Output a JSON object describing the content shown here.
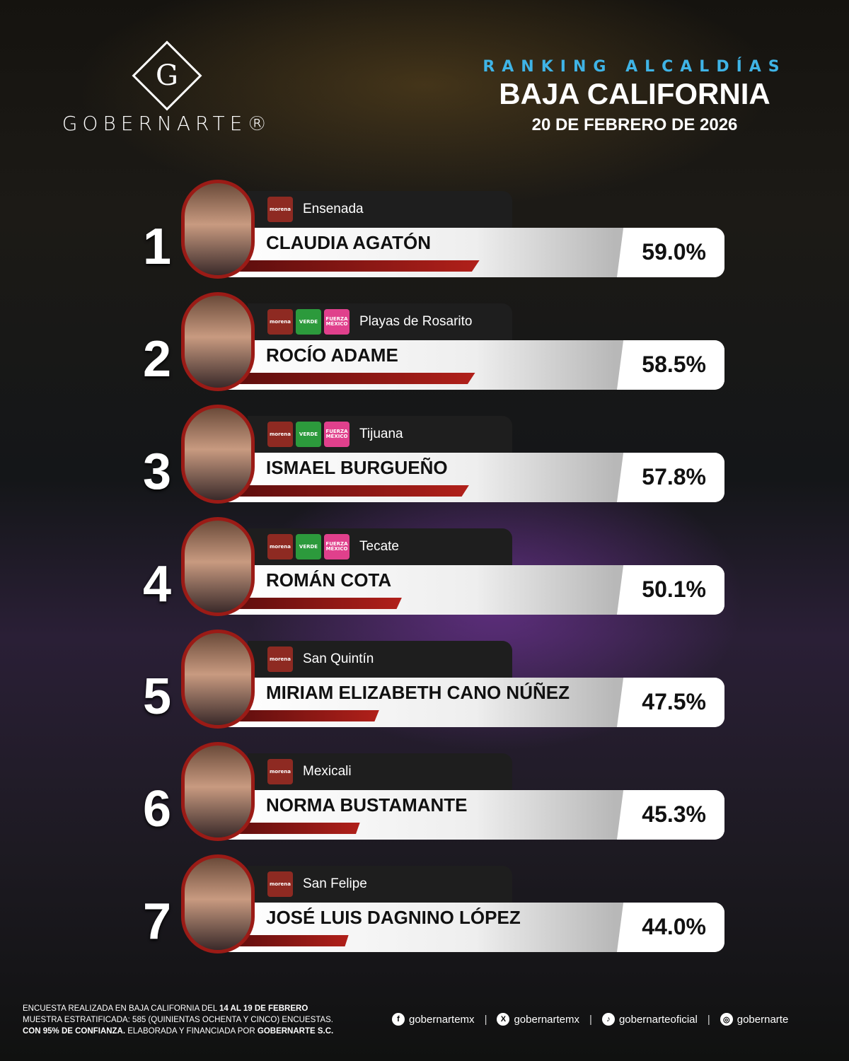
{
  "brand": {
    "name": "GOBERNARTE®",
    "mark": "G"
  },
  "header": {
    "kicker": "RANKING ALCALDÍAS",
    "title": "BAJA CALIFORNIA",
    "date": "20 DE FEBRERO DE 2026"
  },
  "ranking": [
    {
      "rank": "1",
      "municipality": "Ensenada",
      "name": "CLAUDIA AGATÓN",
      "percent": "59.0%",
      "value": 59.0,
      "parties": [
        "morena"
      ]
    },
    {
      "rank": "2",
      "municipality": "Playas de Rosarito",
      "name": "ROCÍO ADAME",
      "percent": "58.5%",
      "value": 58.5,
      "parties": [
        "morena",
        "verde",
        "fuerza"
      ]
    },
    {
      "rank": "3",
      "municipality": "Tijuana",
      "name": "ISMAEL BURGUEÑO",
      "percent": "57.8%",
      "value": 57.8,
      "parties": [
        "morena",
        "verde",
        "fuerza"
      ]
    },
    {
      "rank": "4",
      "municipality": "Tecate",
      "name": "ROMÁN COTA",
      "percent": "50.1%",
      "value": 50.1,
      "parties": [
        "morena",
        "verde",
        "fuerza"
      ]
    },
    {
      "rank": "5",
      "municipality": "San Quintín",
      "name": "MIRIAM ELIZABETH CANO NÚÑEZ",
      "percent": "47.5%",
      "value": 47.5,
      "parties": [
        "morena"
      ]
    },
    {
      "rank": "6",
      "municipality": "Mexicali",
      "name": "NORMA BUSTAMANTE",
      "percent": "45.3%",
      "value": 45.3,
      "parties": [
        "morena"
      ]
    },
    {
      "rank": "7",
      "municipality": "San Felipe",
      "name": "JOSÉ LUIS DAGNINO LÓPEZ",
      "percent": "44.0%",
      "value": 44.0,
      "parties": [
        "morena"
      ]
    }
  ],
  "party_labels": {
    "morena": "morena",
    "verde": "VERDE",
    "fuerza": "FUERZA MÉXICO"
  },
  "colors": {
    "accent_red": "#9b1b16",
    "kicker_blue": "#3fb4e6",
    "morena": "#8e2a22",
    "verde": "#2c9a3c",
    "fuerza": "#e0408c"
  },
  "footer": {
    "line1": "ENCUESTA REALIZADA EN BAJA CALIFORNIA DEL ",
    "line1_bold": "14 AL 19 DE FEBRERO",
    "line2": "MUESTRA ESTRATIFICADA: 585 (QUINIENTAS OCHENTA Y CINCO) ENCUESTAS.",
    "line3_bold": "CON 95% DE CONFIANZA.",
    "line3": " ELABORADA Y FINANCIADA POR ",
    "line3_bold2": "GOBERNARTE S.C."
  },
  "social": [
    {
      "icon": "facebook-icon",
      "glyph": "f",
      "handle": "gobernartemx"
    },
    {
      "icon": "x-icon",
      "glyph": "X",
      "handle": "gobernartemx"
    },
    {
      "icon": "tiktok-icon",
      "glyph": "♪",
      "handle": "gobernarteoficial"
    },
    {
      "icon": "instagram-icon",
      "glyph": "◎",
      "handle": "gobernarte"
    }
  ]
}
